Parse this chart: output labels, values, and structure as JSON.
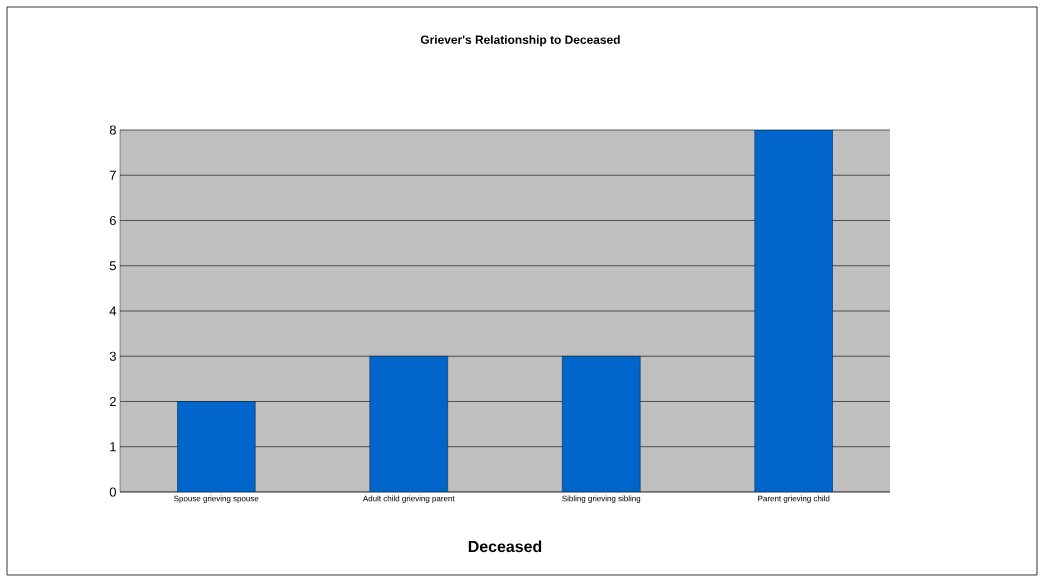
{
  "chart_data": {
    "type": "bar",
    "title": "Griever's Relationship to Deceased",
    "xlabel": "Deceased",
    "categories": [
      "Spouse grieving spouse",
      "Adult child grieving parent",
      "Sibling grieving sibling",
      "Parent grieving child"
    ],
    "values": [
      2,
      3,
      3,
      8
    ],
    "color": "#0066cc",
    "ylim": [
      0,
      8
    ],
    "yticks": [
      0,
      1,
      2,
      3,
      4,
      5,
      6,
      7,
      8
    ],
    "grid": "y"
  }
}
